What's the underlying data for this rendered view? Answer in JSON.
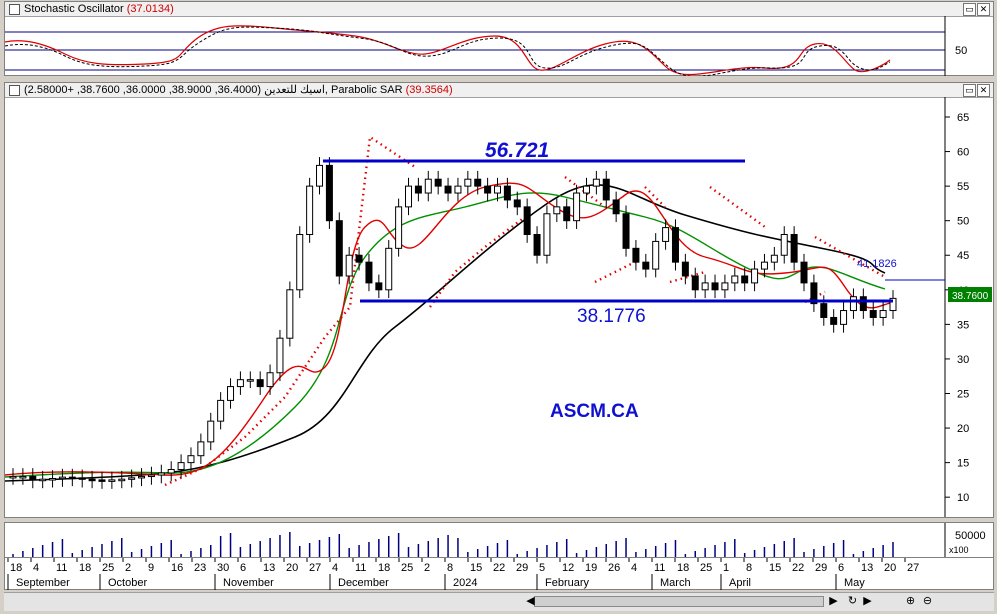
{
  "stochastic": {
    "title": "Stochastic Oscillator",
    "value": "(37.0134)",
    "axis_label": "50"
  },
  "price_panel": {
    "title": "اسيك للتعدين (36.4000, 38.9000, 36.0000, 38.7600, +2.58000), Parabolic SAR",
    "sar_value": "(39.3564)",
    "annotation_top": "56.721",
    "annotation_bottom": "38.1776",
    "annotation_ma": "41.1826",
    "ticker": "ASCM.CA",
    "current_price": "38.7600"
  },
  "volume_panel": {
    "axis_label": "50000",
    "multiplier": "x100"
  },
  "window_buttons": {
    "restore": "▭",
    "close": "✕"
  },
  "scroll": {
    "left_arrow": "◀",
    "right_arrow": "▶",
    "zoom_in": "⊕",
    "zoom_out": "⊖",
    "refresh": "↻",
    "play": "▶"
  },
  "colors": {
    "price_line": "#0000c8",
    "ma_fast": "#e00000",
    "ma_mid": "#009000",
    "ma_slow": "#000000",
    "sar": "#e00000",
    "label_blue": "#1010d0"
  },
  "chart_data": [
    {
      "type": "line",
      "title": "Stochastic Oscillator",
      "y_ticks": [
        50
      ]
    },
    {
      "type": "candlestick",
      "title": "اسيك للتعدين",
      "ylim": [
        8,
        65
      ],
      "y_ticks": [
        10,
        15,
        20,
        25,
        30,
        35,
        40,
        45,
        50,
        55,
        60,
        65
      ],
      "horizontal_lines": [
        56.721,
        38.1776
      ],
      "last_close": 38.76,
      "x_day_ticks": [
        "18",
        "4",
        "11",
        "18",
        "25",
        "2",
        "9",
        "16",
        "23",
        "30",
        "6",
        "13",
        "20",
        "27",
        "4",
        "11",
        "18",
        "25",
        "2",
        "8",
        "15",
        "22",
        "29",
        "5",
        "12",
        "19",
        "26",
        "4",
        "11",
        "18",
        "25",
        "1",
        "8",
        "15",
        "22",
        "29",
        "6",
        "13",
        "20",
        "27"
      ],
      "x_month_ticks": [
        "September",
        "October",
        "November",
        "December",
        "2024",
        "February",
        "March",
        "April",
        "May"
      ]
    },
    {
      "type": "bar",
      "title": "Volume",
      "y_ticks": [
        50000
      ]
    }
  ]
}
